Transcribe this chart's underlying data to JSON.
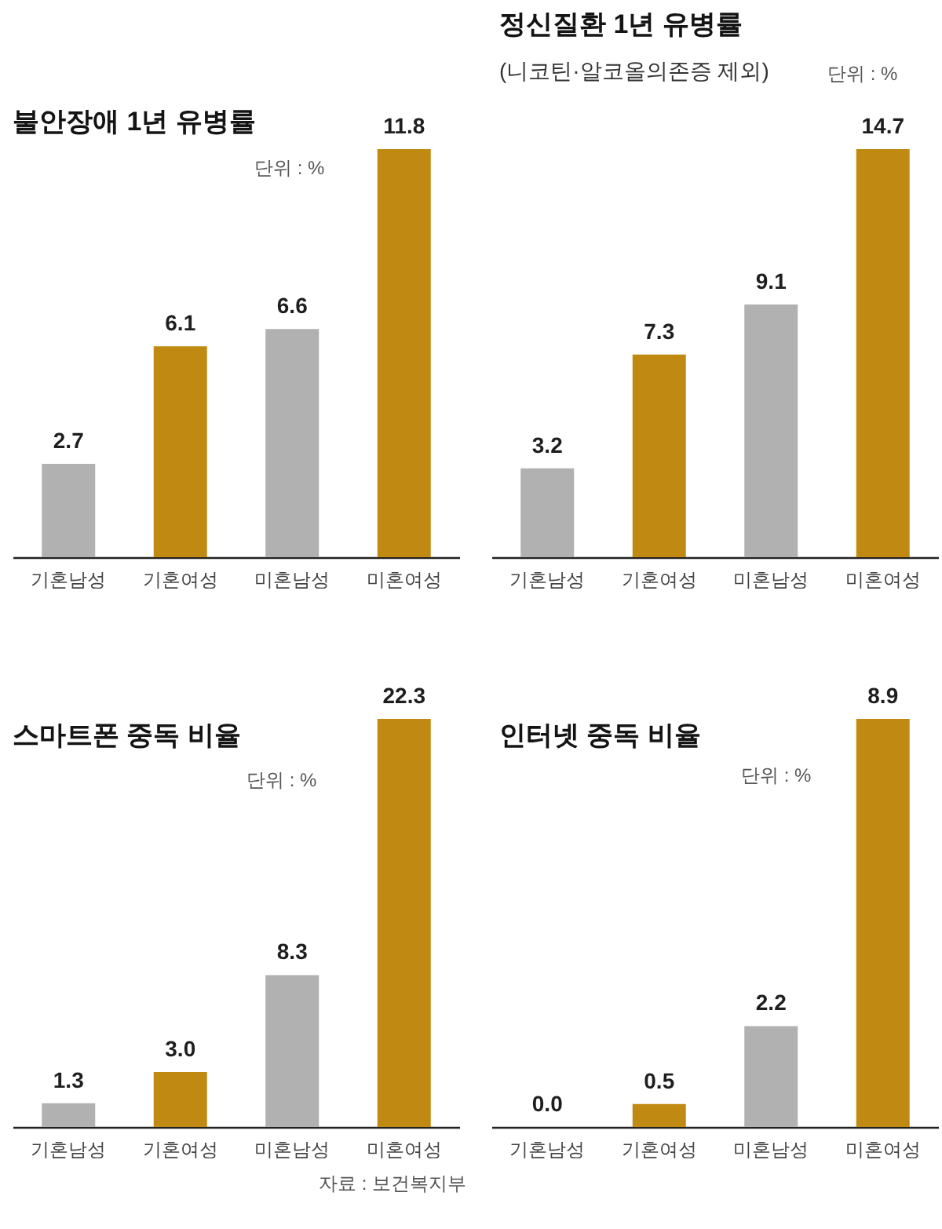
{
  "chart_data": [
    {
      "type": "bar",
      "title": "불안장애 1년 유병률",
      "annotations": [
        "단위 : %"
      ],
      "categories": [
        "기혼남성",
        "기혼여성",
        "미혼남성",
        "미혼여성"
      ],
      "values": [
        2.7,
        6.1,
        6.6,
        11.8
      ],
      "value_labels": [
        "2.7",
        "6.1",
        "6.6",
        "11.8"
      ],
      "colors": [
        "#b1b1b1",
        "#c08a12",
        "#b1b1b1",
        "#c08a12"
      ],
      "tick_labels": "x"
    },
    {
      "type": "bar",
      "title": "정신질환 1년 유병률",
      "subtitle": "(니코틴·알코올의존증 제외)",
      "annotations": [
        "단위 : %"
      ],
      "categories": [
        "기혼남성",
        "기혼여성",
        "미혼남성",
        "미혼여성"
      ],
      "values": [
        3.2,
        7.3,
        9.1,
        14.7
      ],
      "value_labels": [
        "3.2",
        "7.3",
        "9.1",
        "14.7"
      ],
      "colors": [
        "#b1b1b1",
        "#c08a12",
        "#b1b1b1",
        "#c08a12"
      ],
      "tick_labels": "x"
    },
    {
      "type": "bar",
      "title": "스마트폰 중독 비율",
      "annotations": [
        "단위 : %",
        "자료 : 보건복지부"
      ],
      "categories": [
        "기혼남성",
        "기혼여성",
        "미혼남성",
        "미혼여성"
      ],
      "values": [
        1.3,
        3.0,
        8.3,
        22.3
      ],
      "value_labels": [
        "1.3",
        "3.0",
        "8.3",
        "22.3"
      ],
      "colors": [
        "#b1b1b1",
        "#c08a12",
        "#b1b1b1",
        "#c08a12"
      ],
      "tick_labels": "x"
    },
    {
      "type": "bar",
      "title": "인터넷 중독 비율",
      "annotations": [
        "단위 : %"
      ],
      "categories": [
        "기혼남성",
        "기혼여성",
        "미혼남성",
        "미혼여성"
      ],
      "values": [
        0.0,
        0.5,
        2.2,
        8.9
      ],
      "value_labels": [
        "0.0",
        "0.5",
        "2.2",
        "8.9"
      ],
      "colors": [
        "#b1b1b1",
        "#c08a12",
        "#b1b1b1",
        "#c08a12"
      ],
      "tick_labels": "x"
    }
  ]
}
